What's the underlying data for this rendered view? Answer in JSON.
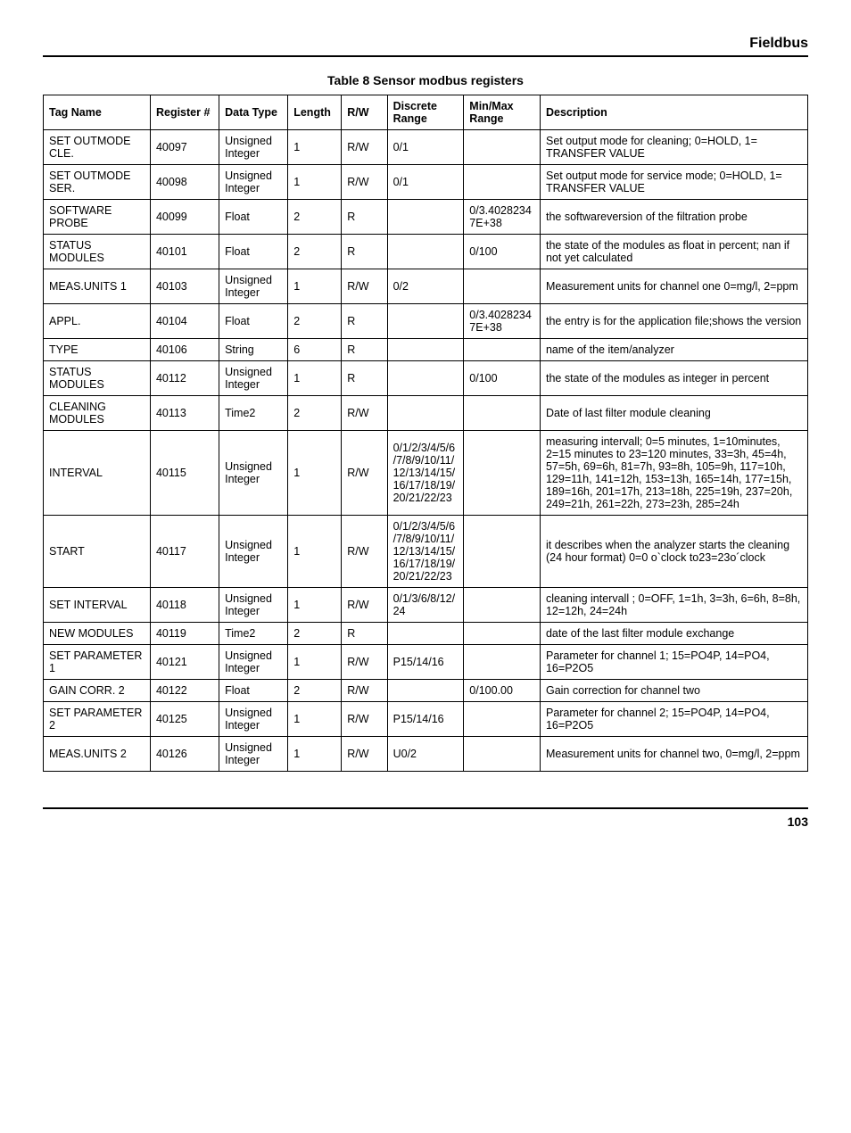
{
  "header": {
    "title": "Fieldbus"
  },
  "table": {
    "caption": "Table 8 Sensor modbus registers",
    "columns": [
      "Tag Name",
      "Register #",
      "Data Type",
      "Length",
      "R/W",
      "Discrete Range",
      "Min/Max Range",
      "Description"
    ],
    "rows": [
      [
        "SET OUTMODE CLE.",
        "40097",
        "Unsigned Integer",
        "1",
        "R/W",
        "0/1",
        "",
        "Set output mode for cleaning; 0=HOLD, 1= TRANSFER VALUE"
      ],
      [
        "SET OUTMODE SER.",
        "40098",
        "Unsigned Integer",
        "1",
        "R/W",
        "0/1",
        "",
        "Set output mode for service mode; 0=HOLD, 1= TRANSFER VALUE"
      ],
      [
        "SOFTWARE PROBE",
        "40099",
        "Float",
        "2",
        "R",
        "",
        "0/3.40282347E+38",
        "the softwareversion of the filtration probe"
      ],
      [
        "STATUS MODULES",
        "40101",
        "Float",
        "2",
        "R",
        "",
        "0/100",
        "the state of the modules as float in percent; nan if not yet calculated"
      ],
      [
        "MEAS.UNITS 1",
        "40103",
        "Unsigned Integer",
        "1",
        "R/W",
        "0/2",
        "",
        "Measurement units for channel one 0=mg/l,  2=ppm"
      ],
      [
        "APPL.",
        "40104",
        "Float",
        "2",
        "R",
        "",
        "0/3.40282347E+38",
        "the entry is for the application file;shows the version"
      ],
      [
        "TYPE",
        "40106",
        "String",
        "6",
        "R",
        "",
        "",
        "name of the item/analyzer"
      ],
      [
        "STATUS MODULES",
        "40112",
        "Unsigned Integer",
        "1",
        "R",
        "",
        "0/100",
        "the state of the modules as integer in percent"
      ],
      [
        "CLEANING MODULES",
        "40113",
        "Time2",
        "2",
        "R/W",
        "",
        "",
        "Date of last filter module cleaning"
      ],
      [
        "INTERVAL",
        "40115",
        "Unsigned Integer",
        "1",
        "R/W",
        "0/1/2/3/4/5/6/7/8/9/10/11/12/13/14/15/16/17/18/19/20/21/22/23",
        "",
        "measuring intervall; 0=5 minutes, 1=10minutes, 2=15 minutes to 23=120 minutes, 33=3h, 45=4h, 57=5h, 69=6h, 81=7h, 93=8h, 105=9h, 117=10h, 129=11h, 141=12h, 153=13h, 165=14h, 177=15h, 189=16h, 201=17h, 213=18h, 225=19h, 237=20h, 249=21h, 261=22h, 273=23h, 285=24h"
      ],
      [
        "START",
        "40117",
        "Unsigned Integer",
        "1",
        "R/W",
        "0/1/2/3/4/5/6/7/8/9/10/11/12/13/14/15/16/17/18/19/20/21/22/23",
        "",
        "it describes when the analyzer starts the cleaning (24 hour format) 0=0 o`clock to23=23o´clock"
      ],
      [
        "SET INTERVAL",
        "40118",
        "Unsigned Integer",
        "1",
        "R/W",
        "0/1/3/6/8/12/24",
        "",
        "cleaning intervall ; 0=OFF, 1=1h, 3=3h, 6=6h, 8=8h, 12=12h, 24=24h"
      ],
      [
        "NEW MODULES",
        "40119",
        "Time2",
        "2",
        "R",
        "",
        "",
        "date of the last filter module exchange"
      ],
      [
        "SET PARAMETER 1",
        "40121",
        "Unsigned Integer",
        "1",
        "R/W",
        "P15/14/16",
        "",
        "Parameter for channel 1; 15=PO4P, 14=PO4, 16=P2O5"
      ],
      [
        "GAIN CORR. 2",
        "40122",
        "Float",
        "2",
        "R/W",
        "",
        "0/100.00",
        "Gain correction for channel two"
      ],
      [
        "SET PARAMETER 2",
        "40125",
        "Unsigned Integer",
        "1",
        "R/W",
        "P15/14/16",
        "",
        "Parameter for channel 2; 15=PO4P, 14=PO4, 16=P2O5"
      ],
      [
        "MEAS.UNITS 2",
        "40126",
        "Unsigned Integer",
        "1",
        "R/W",
        "U0/2",
        "",
        "Measurement units for channel two, 0=mg/l,  2=ppm"
      ]
    ]
  },
  "footer": {
    "page": "103"
  }
}
